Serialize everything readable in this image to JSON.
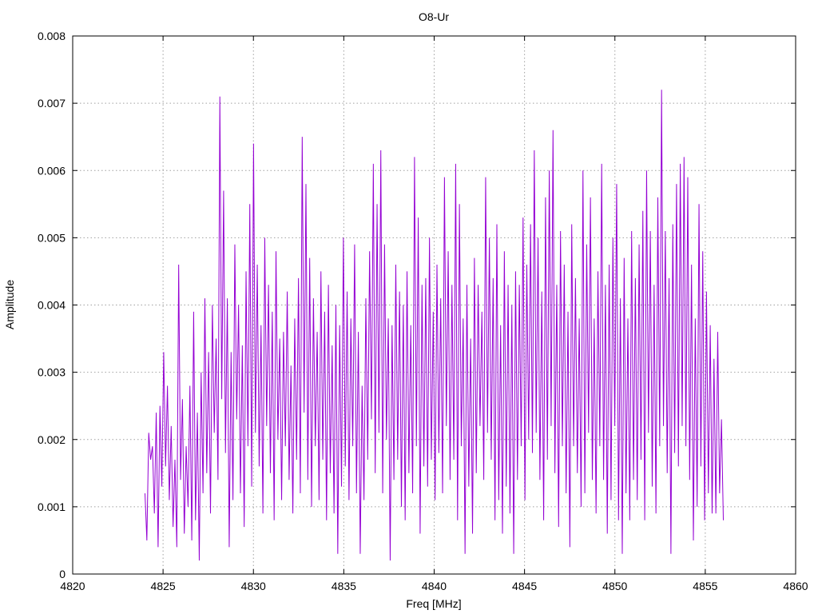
{
  "chart_data": {
    "type": "line",
    "title": "O8-Ur",
    "xlabel": "Freq [MHz]",
    "ylabel": "Amplitude",
    "xlim": [
      4820,
      4860
    ],
    "ylim": [
      0,
      0.008
    ],
    "x_ticks": [
      4820,
      4825,
      4830,
      4835,
      4840,
      4845,
      4850,
      4855,
      4860
    ],
    "y_ticks": [
      0,
      0.001,
      0.002,
      0.003,
      0.004,
      0.005,
      0.006,
      0.007,
      0.008
    ],
    "x_tick_labels": [
      "4820",
      "4825",
      "4830",
      "4835",
      "4840",
      "4845",
      "4850",
      "4855",
      "4860"
    ],
    "y_tick_labels": [
      "0",
      "0.001",
      "0.002",
      "0.003",
      "0.004",
      "0.005",
      "0.006",
      "0.007",
      "0.008"
    ],
    "grid": true,
    "legend": "none",
    "series": [
      {
        "color": "#9400d3",
        "x_start": 4824.0,
        "x_end": 4856.0,
        "values": [
          0.0012,
          0.0005,
          0.0021,
          0.0017,
          0.0019,
          0.0009,
          0.0024,
          0.0004,
          0.0025,
          0.0013,
          0.0033,
          0.0016,
          0.0028,
          0.0011,
          0.0022,
          0.0007,
          0.0017,
          0.0004,
          0.0046,
          0.0014,
          0.0026,
          0.0006,
          0.0019,
          0.001,
          0.0028,
          0.0005,
          0.0039,
          0.0008,
          0.0024,
          0.0002,
          0.003,
          0.0012,
          0.0041,
          0.0015,
          0.0033,
          0.0009,
          0.004,
          0.0021,
          0.0035,
          0.0014,
          0.0071,
          0.0026,
          0.0057,
          0.0018,
          0.0041,
          0.0004,
          0.0033,
          0.0011,
          0.0049,
          0.0023,
          0.004,
          0.0012,
          0.0034,
          0.0007,
          0.0045,
          0.0019,
          0.0055,
          0.0013,
          0.0064,
          0.0021,
          0.0046,
          0.0016,
          0.0037,
          0.0009,
          0.005,
          0.0022,
          0.0043,
          0.0015,
          0.0039,
          0.0008,
          0.0048,
          0.002,
          0.0035,
          0.0011,
          0.0036,
          0.0019,
          0.0042,
          0.0014,
          0.0031,
          0.0009,
          0.0038,
          0.0017,
          0.0044,
          0.0012,
          0.0065,
          0.0024,
          0.0058,
          0.0014,
          0.0047,
          0.001,
          0.0041,
          0.0019,
          0.0036,
          0.0011,
          0.0045,
          0.0017,
          0.0039,
          0.0008,
          0.0043,
          0.0015,
          0.0034,
          0.0009,
          0.004,
          0.0003,
          0.0037,
          0.0013,
          0.005,
          0.0016,
          0.0042,
          0.0011,
          0.0038,
          0.0019,
          0.0049,
          0.0012,
          0.0036,
          0.0003,
          0.0028,
          0.0011,
          0.0041,
          0.0017,
          0.0048,
          0.0023,
          0.0061,
          0.0015,
          0.0055,
          0.0021,
          0.0063,
          0.0012,
          0.0049,
          0.002,
          0.0038,
          0.0002,
          0.0037,
          0.0014,
          0.0046,
          0.0017,
          0.0042,
          0.001,
          0.004,
          0.0008,
          0.0045,
          0.0015,
          0.0037,
          0.0012,
          0.0062,
          0.0019,
          0.0053,
          0.0006,
          0.0043,
          0.0016,
          0.0044,
          0.0013,
          0.005,
          0.0017,
          0.0039,
          0.0011,
          0.0046,
          0.0018,
          0.0041,
          0.0012,
          0.0059,
          0.0022,
          0.0048,
          0.0014,
          0.0043,
          0.0017,
          0.0061,
          0.0008,
          0.0055,
          0.0019,
          0.0038,
          0.0003,
          0.0043,
          0.0013,
          0.0035,
          0.0006,
          0.0047,
          0.0015,
          0.0043,
          0.0022,
          0.0039,
          0.0014,
          0.0059,
          0.0021,
          0.005,
          0.0017,
          0.0044,
          0.0008,
          0.0052,
          0.0011,
          0.0037,
          0.0006,
          0.0048,
          0.0013,
          0.0043,
          0.0009,
          0.004,
          0.0003,
          0.0045,
          0.0014,
          0.0043,
          0.0019,
          0.0053,
          0.0011,
          0.0046,
          0.002,
          0.0052,
          0.0018,
          0.0063,
          0.0021,
          0.005,
          0.0014,
          0.0042,
          0.0008,
          0.0056,
          0.0017,
          0.006,
          0.0022,
          0.0066,
          0.0015,
          0.0043,
          0.0007,
          0.0051,
          0.0019,
          0.0046,
          0.0012,
          0.0039,
          0.0004,
          0.0052,
          0.0019,
          0.0044,
          0.0015,
          0.0038,
          0.001,
          0.006,
          0.0012,
          0.0049,
          0.0021,
          0.0056,
          0.0014,
          0.0038,
          0.0009,
          0.0045,
          0.0019,
          0.0061,
          0.0014,
          0.0043,
          0.0006,
          0.0046,
          0.0011,
          0.005,
          0.0022,
          0.0058,
          0.0008,
          0.0041,
          0.0003,
          0.0047,
          0.0012,
          0.0038,
          0.0008,
          0.0051,
          0.0014,
          0.0044,
          0.0011,
          0.0049,
          0.0017,
          0.0054,
          0.0008,
          0.006,
          0.0021,
          0.0051,
          0.0013,
          0.0043,
          0.0009,
          0.0056,
          0.0019,
          0.0072,
          0.0022,
          0.0051,
          0.0015,
          0.0044,
          0.0003,
          0.0052,
          0.0018,
          0.0058,
          0.0016,
          0.0061,
          0.0022,
          0.0062,
          0.0019,
          0.0059,
          0.0014,
          0.0046,
          0.0005,
          0.0038,
          0.001,
          0.0055,
          0.0016,
          0.0048,
          0.0008,
          0.0042,
          0.0012,
          0.0037,
          0.0009,
          0.0032,
          0.0009,
          0.0036,
          0.0012,
          0.0023,
          0.0008
        ]
      }
    ]
  }
}
